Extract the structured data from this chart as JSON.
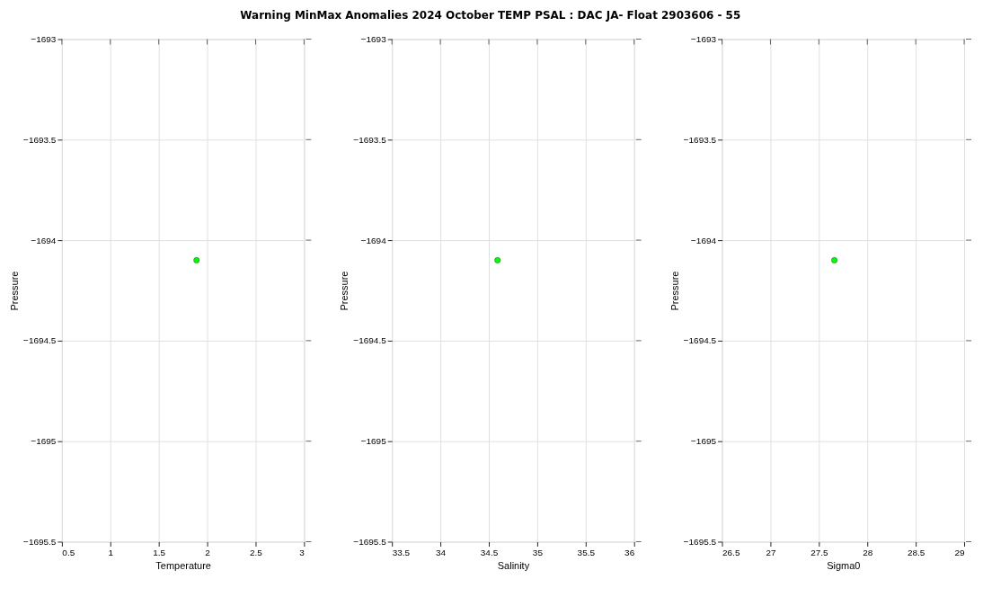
{
  "chart_data": [
    {
      "type": "scatter",
      "title": "Warning MinMax Anomalies 2024 October TEMP PSAL :  DAC JA- Float 2903606 - 55",
      "xlabel": "Temperature",
      "ylabel": "Pressure",
      "x": [
        1.89
      ],
      "series": [
        {
          "color": "#00ff00",
          "values": [
            -1694.1
          ]
        }
      ],
      "xlim": [
        0.5,
        3
      ],
      "xticks": [
        0.5,
        1,
        1.5,
        2,
        2.5,
        3
      ],
      "ylim": [
        -1695.5,
        -1693
      ],
      "yticks": [
        -1695.5,
        -1695,
        -1694.5,
        -1694,
        -1693.5,
        -1693
      ],
      "grid": true,
      "marker": "circle",
      "legend": false
    },
    {
      "type": "scatter",
      "xlabel": "Salinity",
      "ylabel": "Pressure",
      "x": [
        34.59
      ],
      "series": [
        {
          "color": "#00ff00",
          "values": [
            -1694.1
          ]
        }
      ],
      "xlim": [
        33.5,
        36
      ],
      "xticks": [
        33.5,
        34,
        34.5,
        35,
        35.5,
        36
      ],
      "ylim": [
        -1695.5,
        -1693
      ],
      "yticks": [
        -1695.5,
        -1695,
        -1694.5,
        -1694,
        -1693.5,
        -1693
      ],
      "grid": true,
      "marker": "circle",
      "legend": false
    },
    {
      "type": "scatter",
      "xlabel": "Sigma0",
      "ylabel": "Pressure",
      "x": [
        27.66
      ],
      "series": [
        {
          "color": "#00ff00",
          "values": [
            -1694.1
          ]
        }
      ],
      "xlim": [
        26.5,
        29
      ],
      "xticks": [
        26.5,
        27,
        27.5,
        28,
        28.5,
        29
      ],
      "ylim": [
        -1695.5,
        -1693
      ],
      "yticks": [
        -1695.5,
        -1695,
        -1694.5,
        -1694,
        -1693.5,
        -1693
      ],
      "grid": true,
      "marker": "circle",
      "legend": false
    }
  ]
}
